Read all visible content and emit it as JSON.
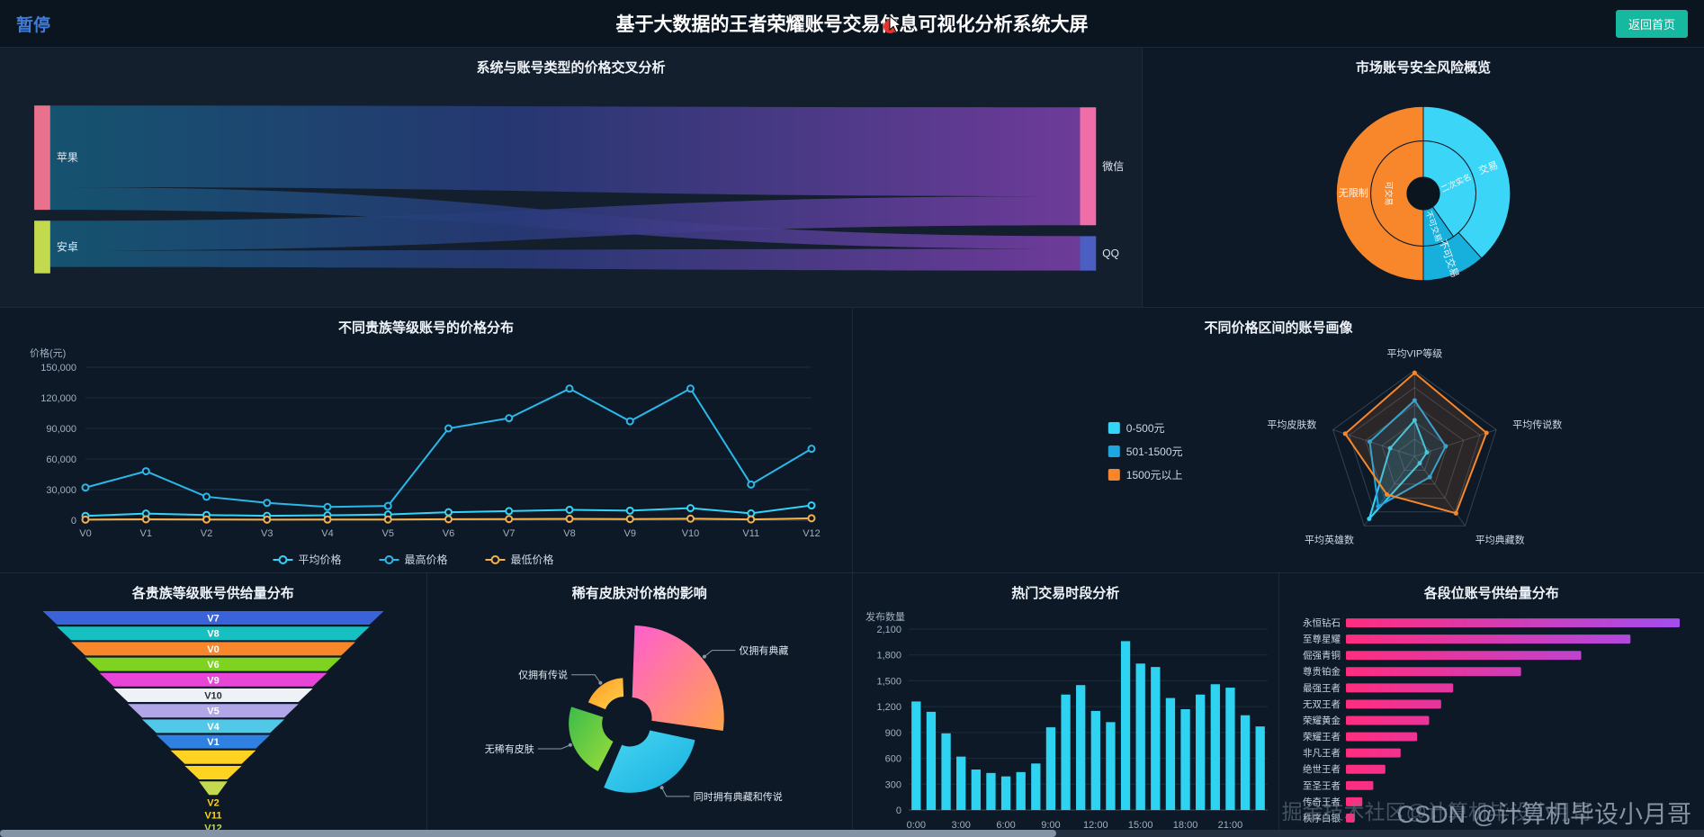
{
  "header": {
    "pause_label": "暂停",
    "title": "基于大数据的王者荣耀账号交易信息可视化分析系统大屏",
    "back_button": "返回首页"
  },
  "watermark": {
    "line1": "CSDN @计算机毕设小月哥",
    "line2": "掘金技术社区@计算机毕设小月哥"
  },
  "panels": {
    "sankey": {
      "title": "系统与账号类型的价格交叉分析"
    },
    "sunburst": {
      "title": "市场账号安全风险概览"
    },
    "line": {
      "title": "不同贵族等级账号的价格分布"
    },
    "radar": {
      "title": "不同价格区间的账号画像"
    },
    "funnel": {
      "title": "各贵族等级账号供给量分布"
    },
    "rose": {
      "title": "稀有皮肤对价格的影响"
    },
    "bars": {
      "title": "热门交易时段分析"
    },
    "hbars": {
      "title": "各段位账号供给量分布"
    }
  },
  "chart_data": [
    {
      "type": "sankey",
      "title": "系统与账号类型的价格交叉分析",
      "nodes": [
        {
          "name": "苹果",
          "side": "left",
          "color": "#e8718d"
        },
        {
          "name": "安卓",
          "side": "left",
          "color": "#c3d94e"
        },
        {
          "name": "微信",
          "side": "right",
          "color": "#ef6ea8"
        },
        {
          "name": "QQ",
          "side": "right",
          "color": "#4a5fc1"
        }
      ],
      "links": [
        {
          "source": "苹果",
          "target": "微信",
          "value": 72
        },
        {
          "source": "苹果",
          "target": "QQ",
          "value": 20
        },
        {
          "source": "安卓",
          "target": "微信",
          "value": 26
        },
        {
          "source": "安卓",
          "target": "QQ",
          "value": 18
        }
      ],
      "flow_colors": [
        "#155a78",
        "#283a7a",
        "#7a3fa8"
      ]
    },
    {
      "type": "sunburst",
      "title": "市场账号安全风险概览",
      "inner": [
        {
          "label": "可交易",
          "start": 180,
          "end": 360,
          "color": "#f8872b",
          "rot": 90
        },
        {
          "label": "二次实名",
          "start": 0,
          "end": 145,
          "color": "#3bd6f7",
          "rot": -25
        },
        {
          "label": "不可交易",
          "start": 145,
          "end": 180,
          "color": "#17b0dd",
          "rot": 70
        }
      ],
      "outer": [
        {
          "label": "交易",
          "start": 0,
          "end": 138,
          "color": "#3bd6f7",
          "rot": -20
        },
        {
          "label": "不可交易",
          "start": 138,
          "end": 180,
          "color": "#17b0dd",
          "rot": 70
        },
        {
          "label": "无限制",
          "start": 180,
          "end": 360,
          "color": "#f8872b",
          "rot": 0
        }
      ]
    },
    {
      "type": "line",
      "title": "不同贵族等级账号的价格分布",
      "ylabel": "价格(元)",
      "categories": [
        "V0",
        "V1",
        "V2",
        "V3",
        "V4",
        "V5",
        "V6",
        "V7",
        "V8",
        "V9",
        "V10",
        "V11",
        "V12"
      ],
      "yticks": [
        0,
        30000,
        60000,
        90000,
        120000,
        150000
      ],
      "ylim": [
        0,
        150000
      ],
      "series": [
        {
          "name": "平均价格",
          "color": "#35d3f5",
          "values": [
            4200,
            6500,
            5100,
            4300,
            4800,
            5600,
            7800,
            8900,
            10200,
            9400,
            11800,
            6700,
            14500
          ]
        },
        {
          "name": "最高价格",
          "color": "#2bb8e8",
          "values": [
            32000,
            48000,
            23000,
            17000,
            13000,
            14000,
            90000,
            100000,
            129000,
            97000,
            129000,
            35000,
            70000
          ]
        },
        {
          "name": "最低价格",
          "color": "#f8b04a",
          "values": [
            600,
            900,
            700,
            550,
            650,
            700,
            950,
            1100,
            1300,
            1150,
            1500,
            800,
            1900
          ]
        }
      ]
    },
    {
      "type": "radar",
      "title": "不同价格区间的账号画像",
      "axes": [
        "平均VIP等级",
        "平均传说数",
        "平均典藏数",
        "平均英雄数",
        "平均皮肤数"
      ],
      "max": 1,
      "legend_position": "left",
      "series": [
        {
          "name": "0-500元",
          "color": "#35d3f5",
          "values": [
            0.42,
            0.15,
            0.1,
            0.9,
            0.3
          ]
        },
        {
          "name": "501-1500元",
          "color": "#1fa6e0",
          "values": [
            0.65,
            0.38,
            0.3,
            0.72,
            0.55
          ]
        },
        {
          "name": "1500元以上",
          "color": "#f8872b",
          "values": [
            0.97,
            0.88,
            0.82,
            0.55,
            0.85
          ]
        }
      ]
    },
    {
      "type": "funnel",
      "title": "各贵族等级账号供给量分布",
      "items": [
        {
          "label": "V7",
          "color": "#3a62d9"
        },
        {
          "label": "V8",
          "color": "#17c0c0"
        },
        {
          "label": "V0",
          "color": "#f8872b"
        },
        {
          "label": "V6",
          "color": "#7ed321"
        },
        {
          "label": "V9",
          "color": "#e845d8"
        },
        {
          "label": "V10",
          "color": "#eef2f6"
        },
        {
          "label": "V5",
          "color": "#b0a6e8"
        },
        {
          "label": "V4",
          "color": "#52c8e8"
        },
        {
          "label": "V1",
          "color": "#2f80e0"
        },
        {
          "label": "V2",
          "color": "#ffd321"
        },
        {
          "label": "V11",
          "color": "#ffd321"
        },
        {
          "label": "V12",
          "color": "#c3d94e"
        }
      ],
      "values": [
        960,
        880,
        800,
        720,
        640,
        560,
        480,
        400,
        320,
        240,
        160,
        80
      ]
    },
    {
      "type": "rose",
      "title": "稀有皮肤对价格的影响",
      "slices": [
        {
          "label": "仅拥有典藏",
          "start": 0,
          "end": 100,
          "radius": 1.0,
          "color1": "#ff5ecf",
          "color2": "#ffa24d"
        },
        {
          "label": "同时拥有典藏和传说",
          "start": 100,
          "end": 205,
          "radius": 0.72,
          "color1": "#49d6f5",
          "color2": "#17b0dd"
        },
        {
          "label": "无稀有皮肤",
          "start": 205,
          "end": 290,
          "radius": 0.58,
          "color1": "#3dbb4a",
          "color2": "#9ade3a"
        },
        {
          "label": "仅拥有传说",
          "start": 290,
          "end": 360,
          "radius": 0.42,
          "color1": "#ff9820",
          "color2": "#ffd34d"
        }
      ]
    },
    {
      "type": "bar",
      "title": "热门交易时段分析",
      "ylabel": "发布数量",
      "yticks": [
        0,
        300,
        600,
        900,
        1200,
        1500,
        1800,
        2100
      ],
      "ylim": [
        0,
        2100
      ],
      "color": "#2fd3f2",
      "xticks": [
        "0:00",
        "3:00",
        "6:00",
        "9:00",
        "12:00",
        "15:00",
        "18:00",
        "21:00"
      ],
      "values": [
        1260,
        1140,
        890,
        620,
        470,
        430,
        390,
        440,
        540,
        960,
        1340,
        1450,
        1150,
        1020,
        1960,
        1700,
        1660,
        1300,
        1170,
        1340,
        1460,
        1420,
        1100,
        970
      ]
    },
    {
      "type": "bar-horizontal",
      "title": "各段位账号供给量分布",
      "categories": [
        "永恒钻石",
        "至尊星耀",
        "倔强青铜",
        "尊贵铂金",
        "最强王者",
        "无双王者",
        "荣耀黄金",
        "荣耀王者",
        "非凡王者",
        "绝世王者",
        "至圣王者",
        "传奇王者",
        "秩序白银"
      ],
      "values": [
        3050,
        2600,
        2150,
        1600,
        980,
        870,
        760,
        650,
        500,
        360,
        250,
        150,
        80
      ],
      "colors": [
        "#ff2d7e",
        "#a44df0"
      ]
    }
  ]
}
